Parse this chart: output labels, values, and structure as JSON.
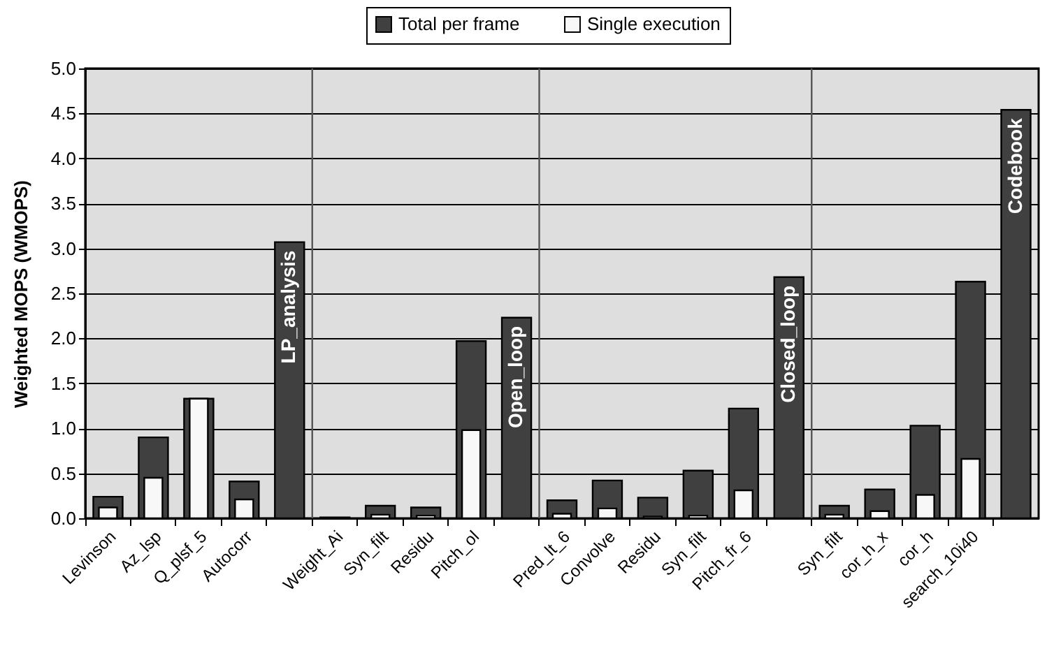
{
  "chart_data": {
    "type": "bar",
    "ylabel": "Weighted MOPS (WMOPS)",
    "categories": [
      "Levinson",
      "Az_lsp",
      "Q_plsf_5",
      "Autocorr",
      null,
      "Weight_Ai",
      "Syn_filt",
      "Residu",
      "Pitch_ol",
      null,
      "Pred_lt_6",
      "Convolve",
      "Residu",
      "Syn_filt",
      "Pitch_fr_6",
      null,
      "Syn_filt",
      "cor_h_x",
      "cor_h",
      "search_10i40",
      null
    ],
    "series": [
      {
        "name": "Total per frame",
        "color": "#404040",
        "values": [
          0.24,
          0.9,
          1.33,
          0.41,
          3.07,
          0.01,
          0.14,
          0.12,
          1.97,
          2.23,
          0.2,
          0.42,
          0.23,
          0.53,
          1.22,
          2.68,
          0.14,
          0.32,
          1.03,
          2.63,
          4.54
        ]
      },
      {
        "name": "Single execution",
        "color": "#f8f8f8",
        "values": [
          0.12,
          0.45,
          1.33,
          0.21,
          null,
          null,
          0.04,
          0.03,
          0.98,
          null,
          0.05,
          0.11,
          0.02,
          0.03,
          0.31,
          null,
          0.04,
          0.08,
          0.26,
          0.66,
          null
        ]
      }
    ],
    "annotations": [
      {
        "text": "LP_analysis",
        "y": 3.07
      },
      {
        "text": "Open_loop",
        "y": 2.23
      },
      {
        "text": "Closed_loop",
        "y": 2.68
      },
      {
        "text": "Codebook",
        "y": 4.54
      }
    ],
    "ylim": [
      0,
      5
    ],
    "yticks": [
      {
        "value": 0,
        "label": "0.0"
      },
      {
        "value": 0.5,
        "label": "0.5"
      },
      {
        "value": 1,
        "label": "1.0"
      },
      {
        "value": 1.5,
        "label": "1.5"
      },
      {
        "value": 2,
        "label": "2.0"
      },
      {
        "value": 2.5,
        "label": "2.5"
      },
      {
        "value": 3,
        "label": "3.0"
      },
      {
        "value": 3.5,
        "label": "3.5"
      },
      {
        "value": 4,
        "label": "4.0"
      },
      {
        "value": 4.5,
        "label": "4.5"
      },
      {
        "value": 5,
        "label": "5.0"
      }
    ],
    "grid": "y",
    "legend": "top"
  }
}
